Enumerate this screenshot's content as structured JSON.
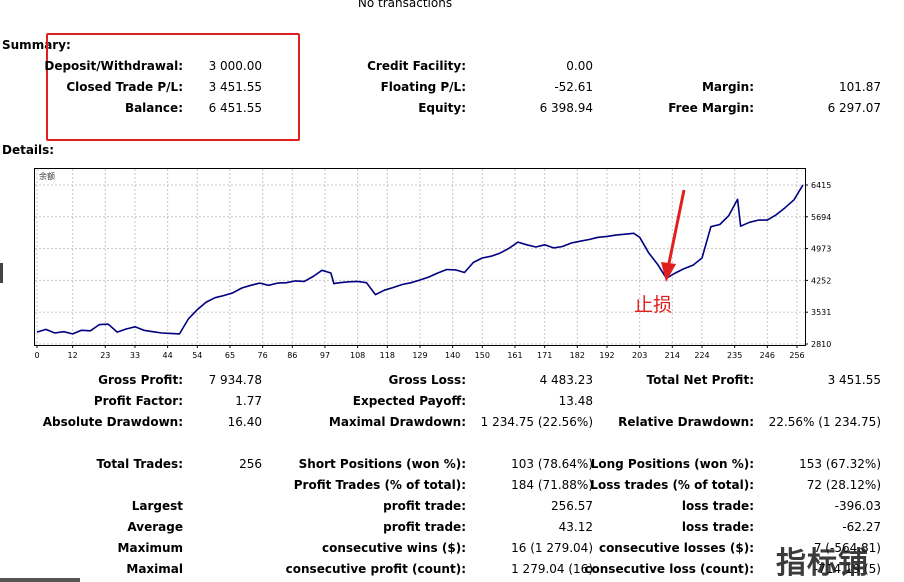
{
  "top_note": "No transactions",
  "summary": {
    "title": "Summary:",
    "rows": [
      [
        {
          "label": "Deposit/Withdrawal:",
          "value": "3 000.00"
        },
        {
          "label": "Credit Facility:",
          "value": "0.00"
        },
        {
          "label": "",
          "value": ""
        }
      ],
      [
        {
          "label": "Closed Trade P/L:",
          "value": "3 451.55"
        },
        {
          "label": "Floating P/L:",
          "value": "-52.61"
        },
        {
          "label": "Margin:",
          "value": "101.87"
        }
      ],
      [
        {
          "label": "Balance:",
          "value": "6 451.55"
        },
        {
          "label": "Equity:",
          "value": "6 398.94"
        },
        {
          "label": "Free Margin:",
          "value": "6 297.07"
        }
      ]
    ]
  },
  "details": {
    "title": "Details:"
  },
  "chart_data": {
    "type": "line",
    "title": "",
    "corner_label": "余额",
    "xlabel": "",
    "ylabel": "",
    "x_ticks": [
      "0",
      "12",
      "23",
      "33",
      "44",
      "54",
      "65",
      "76",
      "86",
      "97",
      "108",
      "118",
      "129",
      "140",
      "150",
      "161",
      "171",
      "182",
      "192",
      "203",
      "214",
      "224",
      "235",
      "246",
      "256"
    ],
    "y_ticks": [
      "6415",
      "5694",
      "4973",
      "4252",
      "3531",
      "2810"
    ],
    "xlim": [
      0,
      260
    ],
    "ylim": [
      2810,
      6700
    ],
    "grid": true,
    "line_color": "#000080",
    "series": [
      {
        "name": "",
        "x": [
          0,
          3,
          6,
          9,
          12,
          15,
          18,
          21,
          24,
          27,
          30,
          33,
          36,
          39,
          42,
          45,
          48,
          51,
          54,
          57,
          60,
          63,
          66,
          69,
          72,
          75,
          78,
          81,
          84,
          87,
          90,
          93,
          96,
          99,
          100,
          102,
          105,
          108,
          111,
          114,
          117,
          120,
          123,
          126,
          129,
          132,
          135,
          138,
          141,
          144,
          147,
          150,
          153,
          156,
          159,
          162,
          165,
          168,
          171,
          174,
          177,
          180,
          183,
          186,
          189,
          192,
          195,
          198,
          201,
          203,
          206,
          209,
          212,
          215,
          218,
          221,
          224,
          227,
          230,
          233,
          236,
          237,
          240,
          243,
          246,
          249,
          252,
          255,
          258
        ],
        "y": [
          3080,
          3140,
          3060,
          3090,
          3040,
          3120,
          3110,
          3250,
          3260,
          3080,
          3150,
          3200,
          3120,
          3090,
          3060,
          3050,
          3040,
          3380,
          3590,
          3760,
          3860,
          3910,
          3970,
          4080,
          4140,
          4190,
          4140,
          4190,
          4200,
          4240,
          4230,
          4340,
          4480,
          4420,
          4180,
          4200,
          4220,
          4230,
          4200,
          3930,
          4030,
          4090,
          4160,
          4200,
          4260,
          4330,
          4420,
          4500,
          4490,
          4430,
          4660,
          4760,
          4800,
          4870,
          4980,
          5120,
          5060,
          5010,
          5060,
          4990,
          5020,
          5100,
          5140,
          5180,
          5230,
          5250,
          5280,
          5300,
          5320,
          5230,
          4880,
          4620,
          4300,
          4420,
          4520,
          4600,
          4760,
          5470,
          5520,
          5720,
          6090,
          5480,
          5570,
          5620,
          5620,
          5740,
          5900,
          6080,
          6415
        ]
      }
    ],
    "annotation": {
      "text": "止损",
      "color": "#e0201e"
    }
  },
  "stats": [
    [
      {
        "label": "Gross Profit:",
        "value": "7 934.78"
      },
      {
        "label": "Gross Loss:",
        "value": "4 483.23"
      },
      {
        "label": "Total Net Profit:",
        "value": "3 451.55"
      }
    ],
    [
      {
        "label": "Profit Factor:",
        "value": "1.77"
      },
      {
        "label": "Expected Payoff:",
        "value": "13.48"
      },
      {
        "label": "",
        "value": ""
      }
    ],
    [
      {
        "label": "Absolute Drawdown:",
        "value": "16.40"
      },
      {
        "label": "Maximal Drawdown:",
        "value": "1 234.75 (22.56%)"
      },
      {
        "label": "Relative Drawdown:",
        "value": "22.56% (1 234.75)"
      }
    ]
  ],
  "trades": [
    [
      {
        "label": "Total Trades:",
        "value": "256"
      },
      {
        "label": "Short Positions (won %):",
        "value": "103 (78.64%)"
      },
      {
        "label": "Long Positions (won %):",
        "value": "153 (67.32%)"
      }
    ],
    [
      {
        "label": "",
        "value": ""
      },
      {
        "label": "Profit Trades (% of total):",
        "value": "184 (71.88%)"
      },
      {
        "label": "Loss trades (% of total):",
        "value": "72 (28.12%)"
      }
    ],
    [
      {
        "label": "Largest",
        "value": ""
      },
      {
        "label": "profit trade:",
        "value": "256.57"
      },
      {
        "label": "loss trade:",
        "value": "-396.03"
      }
    ],
    [
      {
        "label": "Average",
        "value": ""
      },
      {
        "label": "profit trade:",
        "value": "43.12"
      },
      {
        "label": "loss trade:",
        "value": "-62.27"
      }
    ],
    [
      {
        "label": "Maximum",
        "value": ""
      },
      {
        "label": "consecutive wins ($):",
        "value": "16 (1 279.04)"
      },
      {
        "label": "consecutive losses ($):",
        "value": "7 (-564.81)"
      }
    ],
    [
      {
        "label": "Maximal",
        "value": ""
      },
      {
        "label": "consecutive profit (count):",
        "value": "1 279.04 (16)"
      },
      {
        "label": "consecutive loss (count):",
        "value": "-714.19 (5)"
      }
    ]
  ],
  "watermark": "指标铺"
}
